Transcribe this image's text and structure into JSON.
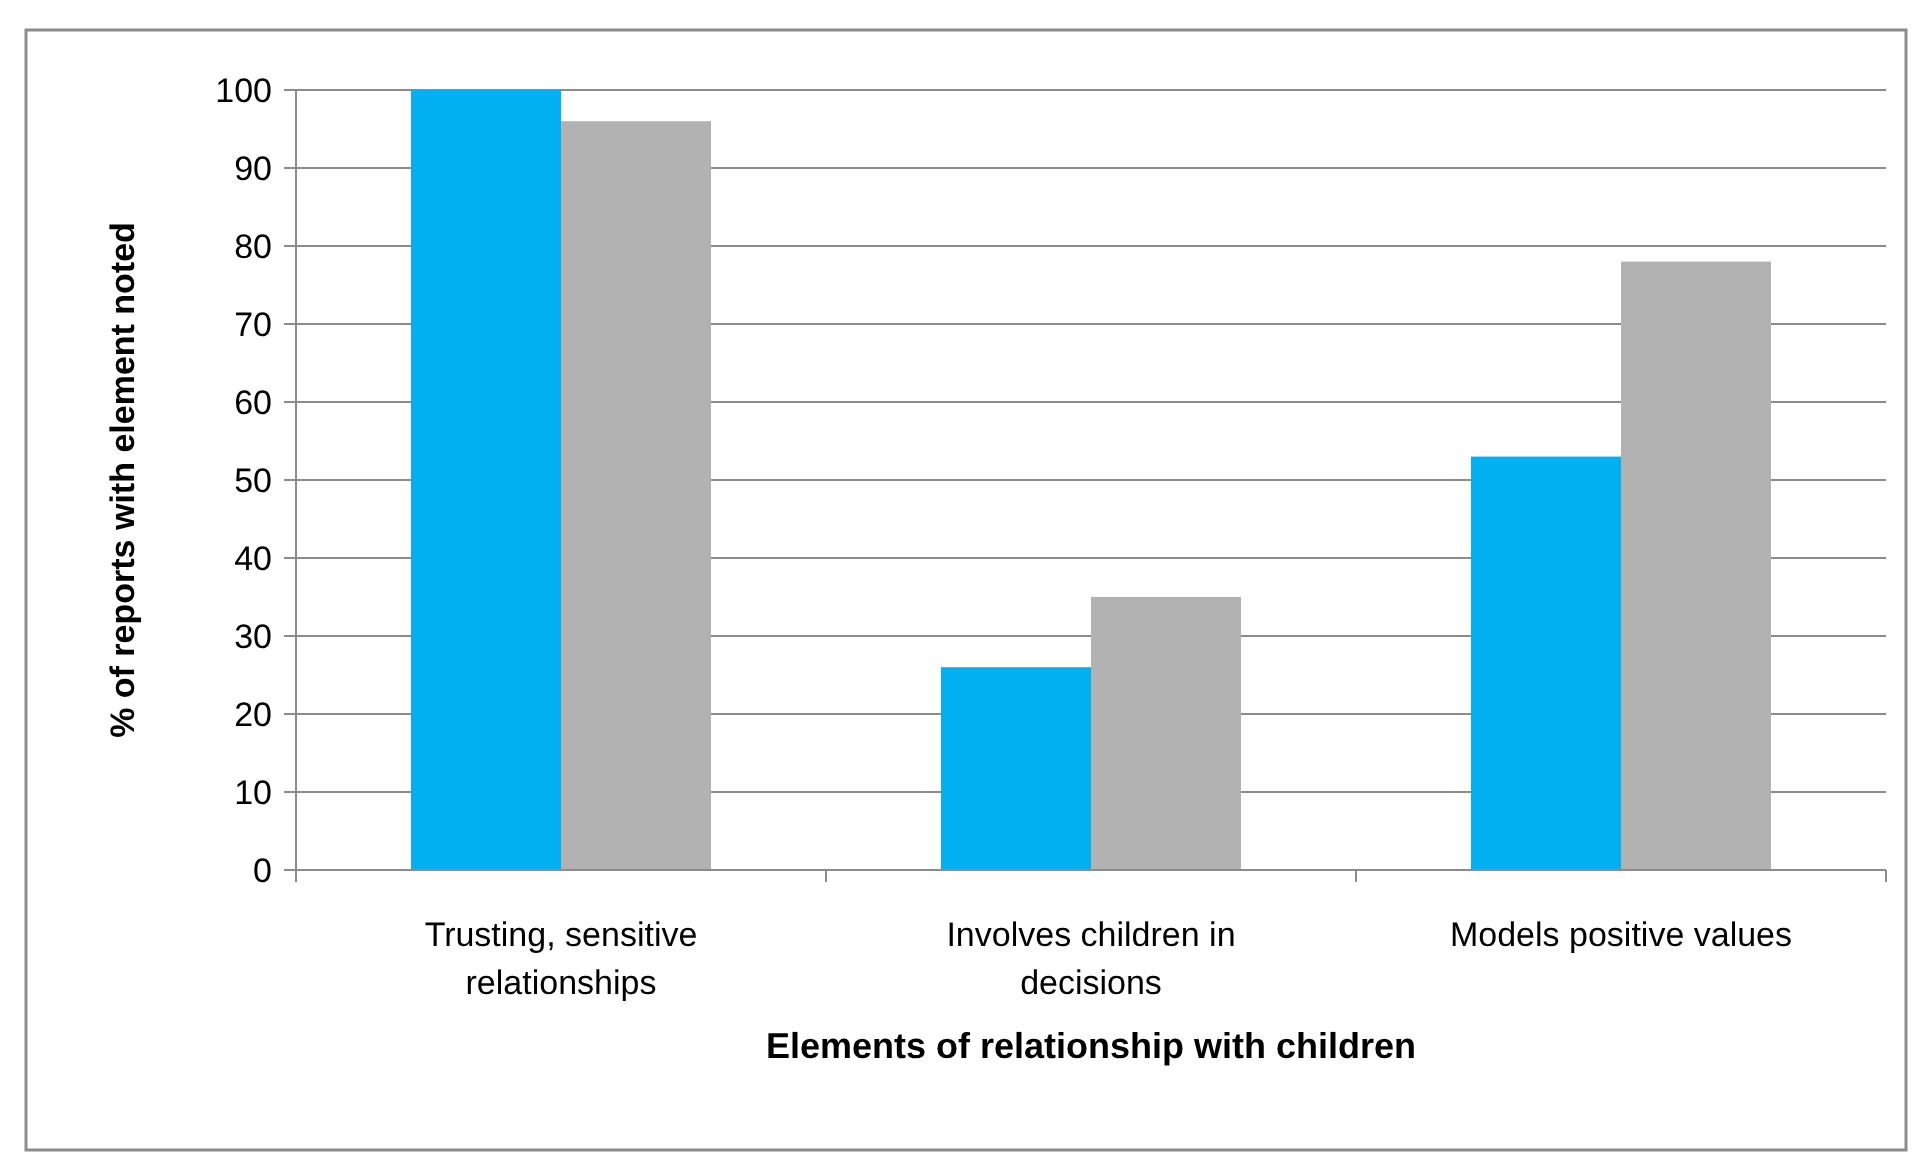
{
  "chart_data": {
    "type": "bar",
    "xlabel": "Elements of relationship with children",
    "ylabel": "% of reports with element noted",
    "categories": [
      "Trusting, sensitive relationships",
      "Involves children in decisions",
      "Models positive values"
    ],
    "series": [
      {
        "color": "#00b0f0",
        "values": [
          100,
          26,
          53
        ]
      },
      {
        "color": "#b2b2b2",
        "values": [
          96,
          35,
          78
        ]
      }
    ],
    "ylim": [
      0,
      100
    ],
    "yticks": [
      0,
      10,
      20,
      30,
      40,
      50,
      60,
      70,
      80,
      90,
      100
    ],
    "grid": "y"
  }
}
